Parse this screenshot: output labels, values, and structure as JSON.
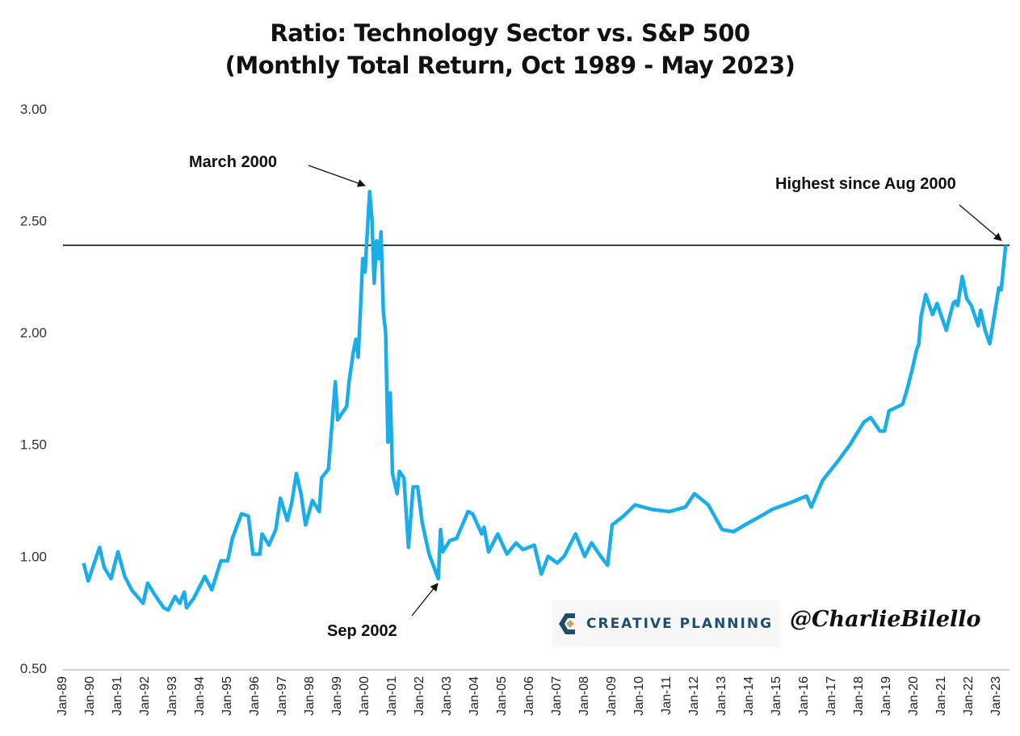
{
  "title_line1": "Ratio: Technology Sector vs. S&P 500",
  "title_line2": "(Monthly Total Return, Oct 1989 - May 2023)",
  "branding": {
    "logo_text": "CREATIVE PLANNING",
    "handle": "@CharlieBilello"
  },
  "chart_data": {
    "type": "line",
    "title": "Ratio: Technology Sector vs. S&P 500 (Monthly Total Return, Oct 1989 - May 2023)",
    "xlabel": "",
    "ylabel": "",
    "ylim": [
      0.5,
      3.0
    ],
    "xlim": [
      "1989-01",
      "2023-05"
    ],
    "grid": false,
    "legend": "none",
    "line_color": "#1aaee8",
    "y_ticks": [
      "0.50",
      "1.00",
      "1.50",
      "2.00",
      "2.50",
      "3.00"
    ],
    "x_ticks": [
      "Jan-89",
      "Jan-90",
      "Jan-91",
      "Jan-92",
      "Jan-93",
      "Jan-94",
      "Jan-95",
      "Jan-96",
      "Jan-97",
      "Jan-98",
      "Jan-99",
      "Jan-00",
      "Jan-01",
      "Jan-02",
      "Jan-03",
      "Jan-04",
      "Jan-05",
      "Jan-06",
      "Jan-07",
      "Jan-08",
      "Jan-09",
      "Jan-10",
      "Jan-11",
      "Jan-12",
      "Jan-13",
      "Jan-14",
      "Jan-15",
      "Jan-16",
      "Jan-17",
      "Jan-18",
      "Jan-19",
      "Jan-20",
      "Jan-21",
      "Jan-22",
      "Jan-23"
    ],
    "reference_line": {
      "value": 2.39
    },
    "annotations": [
      {
        "text": "March 2000",
        "date": "2000-03",
        "value": 2.63
      },
      {
        "text": "Sep 2002",
        "date": "2002-09",
        "value": 0.9
      },
      {
        "text": "Highest since Aug 2000",
        "date": "2023-05",
        "value": 2.39
      }
    ],
    "series": [
      {
        "x": [
          "1989-10",
          "1989-12",
          "1990-05",
          "1990-07",
          "1990-10",
          "1991-01",
          "1991-04",
          "1991-07",
          "1991-12",
          "1992-02",
          "1992-05",
          "1992-09",
          "1992-11",
          "1993-02",
          "1993-04",
          "1993-06",
          "1993-07",
          "1993-10",
          "1994-03",
          "1994-06",
          "1994-10",
          "1995-01",
          "1995-03",
          "1995-07",
          "1995-10",
          "1995-12",
          "1996-03",
          "1996-04",
          "1996-07",
          "1996-10",
          "1996-12",
          "1997-03",
          "1997-05",
          "1997-07",
          "1997-09",
          "1997-11",
          "1998-02",
          "1998-05",
          "1998-06",
          "1998-09",
          "1998-12",
          "1999-01",
          "1999-05",
          "1999-06",
          "1999-08",
          "1999-09",
          "1999-10",
          "1999-11",
          "1999-12",
          "2000-01",
          "2000-02",
          "2000-03",
          "2000-04",
          "2000-05",
          "2000-06",
          "2000-07",
          "2000-08",
          "2000-09",
          "2000-10",
          "2000-11",
          "2000-12",
          "2001-01",
          "2001-03",
          "2001-04",
          "2001-06",
          "2001-08",
          "2001-10",
          "2001-12",
          "2002-02",
          "2002-05",
          "2002-09",
          "2002-10",
          "2002-11",
          "2003-02",
          "2003-05",
          "2003-10",
          "2003-12",
          "2004-04",
          "2004-05",
          "2004-07",
          "2004-11",
          "2005-03",
          "2005-07",
          "2005-10",
          "2006-03",
          "2006-06",
          "2006-09",
          "2007-01",
          "2007-04",
          "2007-09",
          "2008-01",
          "2008-04",
          "2008-08",
          "2008-11",
          "2009-01",
          "2009-06",
          "2009-11",
          "2010-06",
          "2011-02",
          "2011-09",
          "2012-01",
          "2012-07",
          "2013-01",
          "2013-06",
          "2013-11",
          "2014-06",
          "2014-11",
          "2015-07",
          "2016-02",
          "2016-04",
          "2016-09",
          "2017-04",
          "2017-09",
          "2017-12",
          "2018-03",
          "2018-06",
          "2018-10",
          "2018-12",
          "2019-02",
          "2019-06",
          "2019-08",
          "2019-10",
          "2019-12",
          "2020-02",
          "2020-03",
          "2020-04",
          "2020-06",
          "2020-09",
          "2020-11",
          "2021-01",
          "2021-03",
          "2021-06",
          "2021-07",
          "2021-08",
          "2021-10",
          "2021-12",
          "2022-02",
          "2022-05",
          "2022-06",
          "2022-08",
          "2022-10",
          "2023-02",
          "2023-03",
          "2023-05"
        ],
        "values": [
          0.97,
          0.89,
          1.04,
          0.95,
          0.9,
          1.02,
          0.91,
          0.85,
          0.79,
          0.88,
          0.83,
          0.77,
          0.76,
          0.82,
          0.79,
          0.84,
          0.77,
          0.81,
          0.91,
          0.85,
          0.98,
          0.98,
          1.08,
          1.19,
          1.18,
          1.01,
          1.01,
          1.1,
          1.05,
          1.12,
          1.26,
          1.16,
          1.24,
          1.37,
          1.28,
          1.14,
          1.25,
          1.2,
          1.35,
          1.39,
          1.78,
          1.61,
          1.67,
          1.78,
          1.92,
          1.97,
          1.89,
          2.1,
          2.33,
          2.27,
          2.45,
          2.63,
          2.51,
          2.22,
          2.41,
          2.33,
          2.45,
          2.09,
          2.0,
          1.51,
          1.73,
          1.37,
          1.28,
          1.38,
          1.35,
          1.04,
          1.31,
          1.31,
          1.15,
          1.01,
          0.9,
          1.12,
          1.02,
          1.07,
          1.08,
          1.2,
          1.19,
          1.1,
          1.13,
          1.02,
          1.1,
          1.01,
          1.06,
          1.03,
          1.05,
          0.92,
          1.0,
          0.97,
          1.0,
          1.1,
          1.0,
          1.06,
          1.0,
          0.96,
          1.14,
          1.18,
          1.23,
          1.21,
          1.2,
          1.22,
          1.28,
          1.23,
          1.12,
          1.11,
          1.14,
          1.18,
          1.21,
          1.24,
          1.27,
          1.22,
          1.34,
          1.43,
          1.5,
          1.55,
          1.6,
          1.62,
          1.56,
          1.56,
          1.65,
          1.67,
          1.68,
          1.75,
          1.83,
          1.92,
          1.95,
          2.07,
          2.17,
          2.08,
          2.13,
          2.07,
          2.01,
          2.13,
          2.14,
          2.12,
          2.25,
          2.15,
          2.12,
          2.03,
          2.1,
          2.01,
          1.95,
          2.2,
          2.19,
          2.39
        ]
      }
    ]
  }
}
